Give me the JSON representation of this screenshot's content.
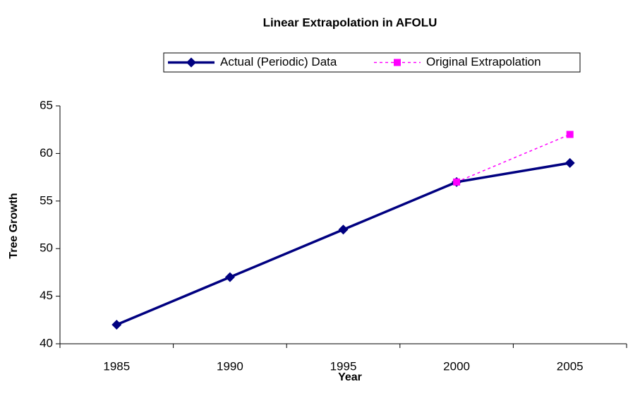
{
  "chart_data": {
    "type": "line",
    "title": "Linear Extrapolation in AFOLU",
    "x_label": "Year",
    "y_label": "Tree Growth",
    "categories": [
      "1985",
      "1990",
      "1995",
      "2000",
      "2005"
    ],
    "series": [
      {
        "name": "Actual (Periodic) Data",
        "color": "#000080",
        "marker": "diamond",
        "dashed": false,
        "values": [
          42,
          47,
          52,
          57,
          59
        ]
      },
      {
        "name": "Original Extrapolation",
        "color": "#ff00ff",
        "marker": "square",
        "dashed": true,
        "values": [
          null,
          null,
          null,
          57,
          62
        ]
      }
    ],
    "ylim": [
      40,
      65
    ],
    "yticks": [
      40,
      45,
      50,
      55,
      60,
      65
    ],
    "grid": false,
    "legend": "top"
  }
}
